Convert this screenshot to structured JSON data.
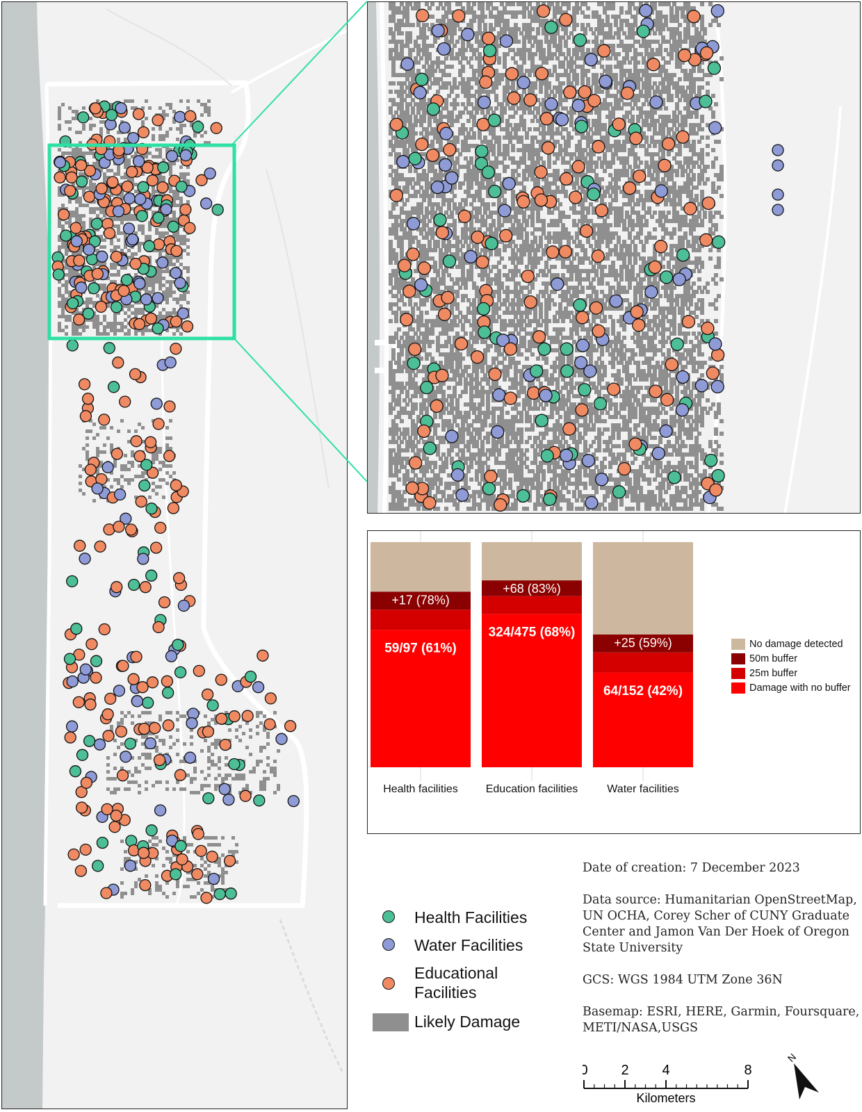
{
  "colors": {
    "health": "#4dbf96",
    "water": "#8f9bd6",
    "education": "#f08a63",
    "damage": "#8f8f8f",
    "sea": "#c4c9c9",
    "land": "#f2f2f2",
    "highlight": "#2ee0a4",
    "no_damage": "#cdb79e",
    "buffer50": "#8b0000",
    "buffer25": "#d40000",
    "no_buffer": "#ff0000"
  },
  "chart_data": {
    "type": "bar",
    "stacked": true,
    "categories": [
      "Health facilities",
      "Education facilities",
      "Water facilities"
    ],
    "series": [
      {
        "name": "Damage with no buffer",
        "values": [
          61,
          68,
          42
        ]
      },
      {
        "name": "25m buffer",
        "values": [
          9,
          8,
          9
        ]
      },
      {
        "name": "50m buffer",
        "values": [
          8,
          7,
          8
        ]
      },
      {
        "name": "No damage detected",
        "values": [
          22,
          17,
          41
        ]
      }
    ],
    "data_labels": {
      "no_buffer": [
        "59/97 (61%)",
        "324/475 (68%)",
        "64/152 (42%)"
      ],
      "buffers": [
        "+17 (78%)",
        "+68 (83%)",
        "+25 (59%)"
      ]
    },
    "ylim": [
      0,
      100
    ],
    "legend_position": "right"
  },
  "legend": {
    "health": "Health Facilities",
    "water": "Water Facilities",
    "education_line1": "Educational",
    "education_line2": "Facilities",
    "damage": "Likely Damage"
  },
  "metadata": {
    "date": "Date of creation: 7 December 2023",
    "source": "Data source: Humanitarian OpenStreetMap, UN OCHA, Corey Scher of CUNY Graduate Center and Jamon Van Der Hoek of Oregon State University",
    "gcs": "GCS: WGS 1984 UTM Zone 36N",
    "basemap": "Basemap: ESRI, HERE, Garmin, Foursquare, METI/NASA,USGS"
  },
  "scale_bar": {
    "ticks": [
      "0",
      "2",
      "4",
      "8"
    ],
    "tick_values_km": [
      0,
      2,
      4,
      8
    ],
    "unit": "Kilometers"
  },
  "north_label": "N"
}
